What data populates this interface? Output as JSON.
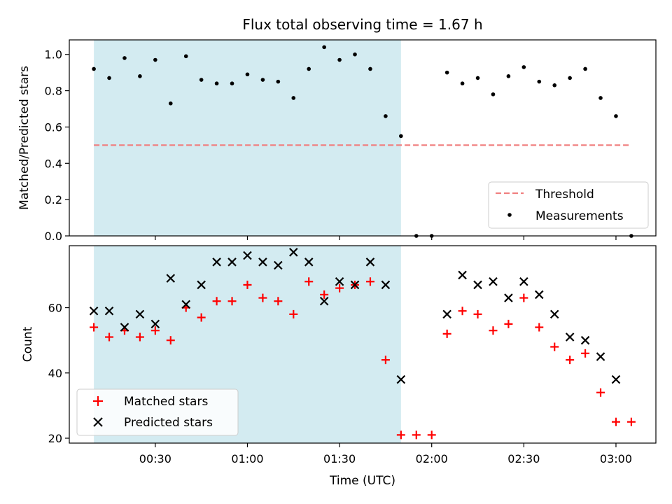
{
  "chart_data": [
    {
      "type": "scatter",
      "title": "Flux total observing time = 1.67 h",
      "xlabel": "",
      "ylabel": "Matched/Predicted stars",
      "xlim": [
        2.0,
        193.0
      ],
      "ylim": [
        0.0,
        1.08
      ],
      "yticks": [
        0.0,
        0.2,
        0.4,
        0.6,
        0.8,
        1.0
      ],
      "ytick_labels": [
        "0.0",
        "0.2",
        "0.4",
        "0.6",
        "0.8",
        "1.0"
      ],
      "shaded_span": [
        10,
        110
      ],
      "shade_color": "#d3ebf1",
      "threshold": {
        "name": "Threshold",
        "y": 0.5,
        "x_range": [
          10,
          185
        ],
        "color": "#f08080"
      },
      "series": [
        {
          "name": "Measurements",
          "color": "#000000",
          "x": [
            10,
            15,
            20,
            25,
            30,
            35,
            40,
            45,
            50,
            55,
            60,
            65,
            70,
            75,
            80,
            85,
            90,
            95,
            100,
            105,
            110,
            115,
            120,
            125,
            130,
            135,
            140,
            145,
            150,
            155,
            160,
            165,
            170,
            175,
            180,
            185
          ],
          "y": [
            0.92,
            0.87,
            0.98,
            0.88,
            0.97,
            0.73,
            0.99,
            0.86,
            0.84,
            0.84,
            0.89,
            0.86,
            0.85,
            0.76,
            0.92,
            1.04,
            0.97,
            1.0,
            0.92,
            0.66,
            0.55,
            0.0,
            0.0,
            0.9,
            0.84,
            0.87,
            0.78,
            0.88,
            0.93,
            0.85,
            0.83,
            0.87,
            0.92,
            0.76,
            0.66,
            0.0
          ]
        }
      ],
      "legend": {
        "position": "bottom-right",
        "entries": [
          "Threshold",
          "Measurements"
        ]
      }
    },
    {
      "type": "scatter",
      "title": "",
      "xlabel": "Time (UTC)",
      "ylabel": "Count",
      "xlim": [
        2.0,
        193.0
      ],
      "ylim": [
        18.5,
        79.0
      ],
      "yticks": [
        20,
        40,
        60
      ],
      "ytick_labels": [
        "20",
        "40",
        "60"
      ],
      "xticks": [
        30,
        60,
        90,
        120,
        150,
        180
      ],
      "xtick_labels": [
        "00:30",
        "01:00",
        "01:30",
        "02:00",
        "02:30",
        "03:00"
      ],
      "shaded_span": [
        10,
        110
      ],
      "shade_color": "#d3ebf1",
      "series": [
        {
          "name": "Matched stars",
          "marker": "plus",
          "color": "#ff0000",
          "x": [
            10,
            15,
            20,
            25,
            30,
            35,
            40,
            45,
            50,
            55,
            60,
            65,
            70,
            75,
            80,
            85,
            90,
            95,
            100,
            105,
            110,
            115,
            120,
            125,
            130,
            135,
            140,
            145,
            150,
            155,
            160,
            165,
            170,
            175,
            180,
            185
          ],
          "y": [
            54,
            51,
            53,
            51,
            53,
            50,
            60,
            57,
            62,
            62,
            67,
            63,
            62,
            58,
            68,
            64,
            66,
            67,
            68,
            44,
            21,
            21,
            21,
            52,
            59,
            58,
            53,
            55,
            63,
            54,
            48,
            44,
            46,
            34,
            25,
            25
          ]
        },
        {
          "name": "Predicted stars",
          "marker": "x",
          "color": "#000000",
          "x": [
            10,
            15,
            20,
            25,
            30,
            35,
            40,
            45,
            50,
            55,
            60,
            65,
            70,
            75,
            80,
            85,
            90,
            95,
            100,
            105,
            110,
            125,
            130,
            135,
            140,
            145,
            150,
            155,
            160,
            165,
            170,
            175,
            180
          ],
          "y": [
            59,
            59,
            54,
            58,
            55,
            69,
            61,
            67,
            74,
            74,
            76,
            74,
            73,
            77,
            74,
            62,
            68,
            67,
            74,
            67,
            38,
            58,
            70,
            67,
            68,
            63,
            68,
            64,
            58,
            51,
            50,
            45,
            38
          ]
        }
      ],
      "legend": {
        "position": "bottom-left",
        "entries": [
          "Matched stars",
          "Predicted stars"
        ]
      }
    }
  ]
}
